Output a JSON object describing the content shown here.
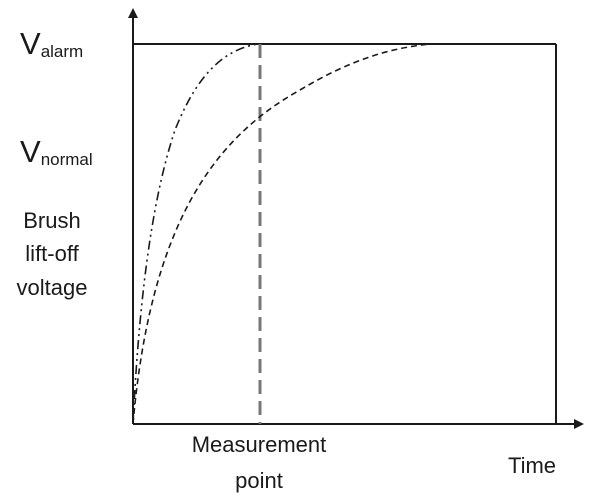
{
  "diagram": {
    "y_levels": {
      "alarm": {
        "main": "V",
        "sub": "alarm"
      },
      "normal": {
        "main": "V",
        "sub": "normal"
      }
    },
    "ylabel_lines": [
      "Brush",
      "lift-off",
      "voltage"
    ],
    "xlabel": "Time",
    "marker_label_lines": [
      "Measurement",
      "point"
    ],
    "curves": [
      {
        "style": "dash-dot-dot",
        "reaches_alarm_before_measurement": true
      },
      {
        "style": "dashed",
        "reaches_alarm_before_measurement": false
      }
    ],
    "colors": {
      "line": "#1a1a1a",
      "marker": "#777777"
    }
  }
}
